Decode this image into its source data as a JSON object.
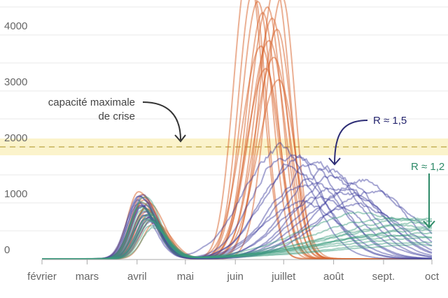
{
  "chart_data": {
    "type": "line",
    "title": "",
    "xlabel": "",
    "ylabel": "",
    "x_unit": "days since 1 Feb",
    "xlim": [
      0,
      242
    ],
    "ylim": [
      0,
      4500
    ],
    "yticks": [
      0,
      1000,
      2000,
      3000,
      4000
    ],
    "ytick_labels": [
      "0",
      "1000",
      "2000",
      "3000",
      "4000"
    ],
    "grid": true,
    "xticks": [
      {
        "day": 0,
        "label": "février"
      },
      {
        "day": 28,
        "label": "mars"
      },
      {
        "day": 59,
        "label": "avril"
      },
      {
        "day": 89,
        "label": "mai"
      },
      {
        "day": 120,
        "label": "juin"
      },
      {
        "day": 150,
        "label": "juillet"
      },
      {
        "day": 181,
        "label": "août"
      },
      {
        "day": 212,
        "label": "sept."
      },
      {
        "day": 242,
        "label": "oct"
      }
    ],
    "threshold": {
      "value": 2000,
      "band": [
        1850,
        2150
      ],
      "color": "#f5e27a",
      "label": "capacité maximale de crise",
      "label_line1": "capacité maximale",
      "label_line2": "de crise"
    },
    "annotations": [
      {
        "label": "R ≈ 1,5",
        "color": "#25256e"
      },
      {
        "label": "R ≈ 1,2",
        "color": "#2e8a68"
      }
    ],
    "groups": {
      "orange": "#d8622a",
      "blue": "#3b3b9e",
      "green": "#3a9c7c"
    },
    "series_params_note": "each series: [wave1 peak, wave1 day, wave2 peak, wave2 day, rise width, fall width]",
    "series": [
      {
        "group": "orange",
        "p": [
          1150,
          62,
          5200,
          128,
          9,
          9
        ]
      },
      {
        "group": "orange",
        "p": [
          900,
          64,
          4800,
          131,
          9,
          8
        ]
      },
      {
        "group": "orange",
        "p": [
          1200,
          60,
          4600,
          134,
          10,
          9
        ]
      },
      {
        "group": "orange",
        "p": [
          800,
          66,
          4400,
          137,
          10,
          9
        ]
      },
      {
        "group": "orange",
        "p": [
          1050,
          63,
          4500,
          140,
          11,
          9
        ]
      },
      {
        "group": "orange",
        "p": [
          700,
          68,
          4300,
          143,
          11,
          9
        ]
      },
      {
        "group": "orange",
        "p": [
          1000,
          62,
          4100,
          146,
          11,
          9
        ]
      },
      {
        "group": "orange",
        "p": [
          850,
          65,
          3900,
          141,
          12,
          10
        ]
      },
      {
        "group": "orange",
        "p": [
          950,
          61,
          3800,
          136,
          12,
          10
        ]
      },
      {
        "group": "orange",
        "p": [
          750,
          67,
          3600,
          144,
          12,
          10
        ]
      },
      {
        "group": "orange",
        "p": [
          1100,
          63,
          3400,
          139,
          12,
          9
        ]
      },
      {
        "group": "orange",
        "p": [
          650,
          70,
          4900,
          145,
          10,
          9
        ]
      },
      {
        "group": "orange",
        "p": [
          900,
          64,
          3200,
          147,
          13,
          10
        ]
      },
      {
        "group": "orange",
        "p": [
          1000,
          66,
          4700,
          149,
          10,
          8
        ]
      },
      {
        "group": "blue",
        "p": [
          1150,
          60,
          1950,
          147,
          22,
          20
        ]
      },
      {
        "group": "blue",
        "p": [
          1100,
          61,
          1900,
          152,
          20,
          22
        ]
      },
      {
        "group": "blue",
        "p": [
          950,
          63,
          1800,
          160,
          22,
          24
        ]
      },
      {
        "group": "blue",
        "p": [
          1050,
          59,
          1700,
          170,
          25,
          26
        ]
      },
      {
        "group": "blue",
        "p": [
          800,
          64,
          1600,
          155,
          20,
          22
        ]
      },
      {
        "group": "blue",
        "p": [
          900,
          62,
          1550,
          176,
          24,
          26
        ]
      },
      {
        "group": "blue",
        "p": [
          700,
          66,
          1450,
          182,
          24,
          26
        ]
      },
      {
        "group": "blue",
        "p": [
          1000,
          60,
          1400,
          200,
          28,
          24
        ]
      },
      {
        "group": "blue",
        "p": [
          850,
          63,
          1350,
          165,
          22,
          24
        ]
      },
      {
        "group": "blue",
        "p": [
          750,
          65,
          1250,
          185,
          26,
          26
        ]
      },
      {
        "group": "blue",
        "p": [
          950,
          61,
          1150,
          190,
          28,
          26
        ]
      },
      {
        "group": "blue",
        "p": [
          650,
          67,
          1100,
          172,
          24,
          26
        ]
      },
      {
        "group": "blue",
        "p": [
          1100,
          62,
          1050,
          160,
          22,
          24
        ]
      },
      {
        "group": "blue",
        "p": [
          800,
          64,
          950,
          195,
          30,
          28
        ]
      },
      {
        "group": "blue",
        "p": [
          700,
          66,
          1200,
          205,
          30,
          26
        ]
      },
      {
        "group": "green",
        "p": [
          1150,
          63,
          800,
          200,
          40,
          60
        ]
      },
      {
        "group": "green",
        "p": [
          1000,
          62,
          750,
          215,
          45,
          60
        ]
      },
      {
        "group": "green",
        "p": [
          850,
          64,
          700,
          230,
          50,
          60
        ]
      },
      {
        "group": "green",
        "p": [
          750,
          66,
          650,
          240,
          55,
          60
        ]
      },
      {
        "group": "green",
        "p": [
          950,
          61,
          600,
          225,
          50,
          60
        ]
      },
      {
        "group": "green",
        "p": [
          700,
          65,
          550,
          242,
          55,
          60
        ]
      },
      {
        "group": "green",
        "p": [
          650,
          67,
          500,
          235,
          55,
          60
        ]
      },
      {
        "group": "green",
        "p": [
          900,
          63,
          450,
          242,
          60,
          60
        ]
      },
      {
        "group": "green",
        "p": [
          600,
          68,
          420,
          220,
          50,
          60
        ]
      },
      {
        "group": "green",
        "p": [
          800,
          64,
          380,
          242,
          60,
          60
        ]
      },
      {
        "group": "green",
        "p": [
          550,
          69,
          300,
          242,
          60,
          60
        ]
      },
      {
        "group": "green",
        "p": [
          700,
          66,
          250,
          242,
          60,
          60
        ]
      }
    ]
  }
}
